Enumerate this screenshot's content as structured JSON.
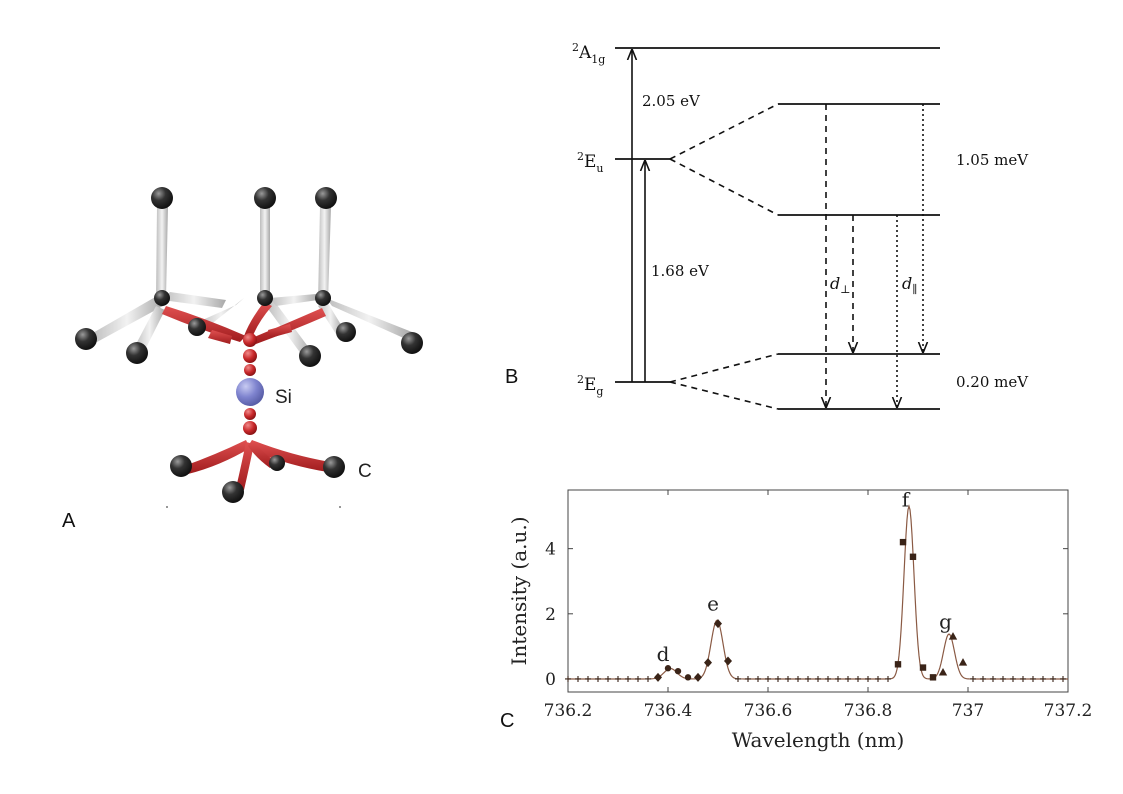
{
  "panels": {
    "a_label": "A",
    "b_label": "B",
    "c_label": "C"
  },
  "molecule": {
    "si_label": "Si",
    "c_label": "C"
  },
  "level_diagram": {
    "levels": {
      "a1g": {
        "sup": "2",
        "main": "A",
        "sub": "1g"
      },
      "eu": {
        "sup": "2",
        "main": "E",
        "sub": "u"
      },
      "eg": {
        "sup": "2",
        "main": "E",
        "sub": "g"
      }
    },
    "energy_a1g_eu": "2.05 eV",
    "energy_eg_eu": "1.68 eV",
    "splitting_excited": "1.05 meV",
    "splitting_ground": "0.20 meV",
    "d_perp": {
      "main": "d",
      "sub": "⊥"
    },
    "d_par": {
      "main": "d",
      "sub": "∥"
    }
  },
  "chart_data": {
    "type": "line",
    "xlabel": "Wavelength (nm)",
    "ylabel": "Intensity (a.u.)",
    "xlim": [
      736.2,
      737.2
    ],
    "ylim": [
      -0.4,
      5.8
    ],
    "xticks": [
      "736.2",
      "736.4",
      "736.6",
      "736.8",
      "737",
      "737.2"
    ],
    "xtick_values": [
      736.2,
      736.4,
      736.6,
      736.8,
      737.0,
      737.2
    ],
    "yticks": [
      "0",
      "2",
      "4"
    ],
    "ytick_values": [
      0,
      2,
      4
    ],
    "peak_labels": [
      {
        "text": "d",
        "x": 736.39,
        "y": 0.55
      },
      {
        "text": "e",
        "x": 736.49,
        "y": 2.1
      },
      {
        "text": "f",
        "x": 736.875,
        "y": 5.3
      },
      {
        "text": "g",
        "x": 736.955,
        "y": 1.55
      }
    ],
    "peaks": [
      {
        "center": 736.405,
        "amp": 0.32,
        "sigma": 0.013
      },
      {
        "center": 736.498,
        "amp": 1.8,
        "sigma": 0.012
      },
      {
        "center": 736.882,
        "amp": 5.3,
        "sigma": 0.01
      },
      {
        "center": 736.962,
        "amp": 1.38,
        "sigma": 0.011
      }
    ],
    "series": [
      {
        "marker": "circle",
        "x": [
          736.4,
          736.42,
          736.44
        ],
        "y": [
          0.33,
          0.24,
          0.05
        ]
      },
      {
        "marker": "diamond",
        "x": [
          736.38,
          736.46,
          736.48,
          736.5,
          736.52
        ],
        "y": [
          0.05,
          0.05,
          0.5,
          1.7,
          0.55
        ]
      },
      {
        "marker": "square",
        "x": [
          736.86,
          736.87,
          736.89,
          736.91,
          736.93
        ],
        "y": [
          0.45,
          4.2,
          3.75,
          0.35,
          0.05
        ]
      },
      {
        "marker": "triangle",
        "x": [
          736.95,
          736.97,
          736.99
        ],
        "y": [
          0.2,
          1.3,
          0.5
        ]
      },
      {
        "marker": "plus",
        "x": [
          736.2,
          736.22,
          736.24,
          736.26,
          736.28,
          736.3,
          736.32,
          736.34,
          736.36,
          736.54,
          736.56,
          736.58,
          736.6,
          736.62,
          736.64,
          736.66,
          736.68,
          736.7,
          736.72,
          736.74,
          736.76,
          736.78,
          736.8,
          736.82,
          736.84,
          737.01,
          737.03,
          737.05,
          737.07,
          737.09,
          737.11,
          737.13,
          737.15,
          737.17,
          737.19
        ],
        "y": [
          0,
          0,
          0,
          0,
          0,
          0,
          0,
          0,
          0,
          0,
          0,
          0,
          0,
          0,
          0,
          0,
          0,
          0,
          0,
          0,
          0,
          0,
          0,
          0,
          0,
          0,
          0,
          0,
          0,
          0,
          0,
          0,
          0,
          0,
          0
        ]
      }
    ],
    "colors": {
      "line": "#8a5a44",
      "marker": "#3a2418"
    }
  }
}
